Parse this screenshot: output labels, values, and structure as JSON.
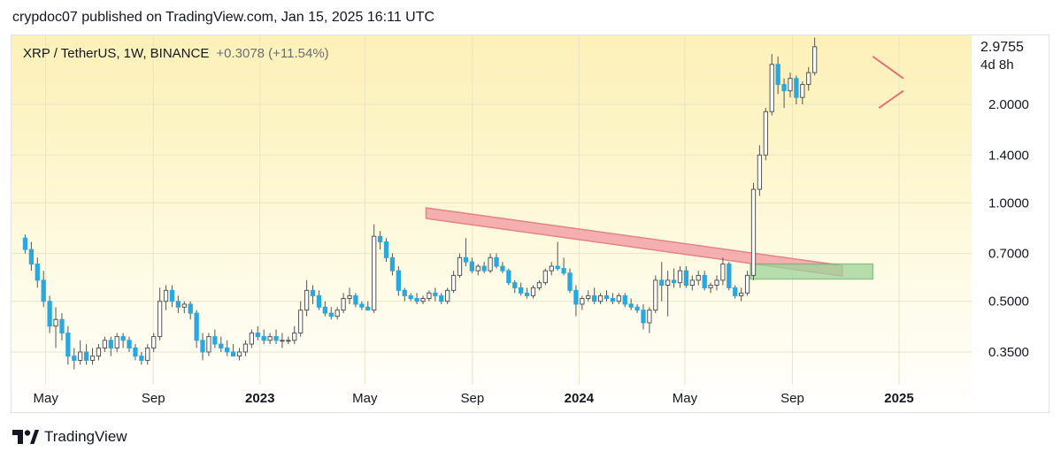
{
  "header": {
    "published": "crypdoc07 published on TradingView.com, Jan 15, 2025 16:11 UTC"
  },
  "symbol": {
    "name": "XRP / TetherUS, 1W, BINANCE",
    "change": "+0.3078 (+11.54%)"
  },
  "price_box": {
    "last": "2.9755",
    "countdown": "4d 8h"
  },
  "footer": {
    "brand": "TradingView",
    "logo_icon": "tradingview-logo-icon"
  },
  "colors": {
    "up": "#ffffff",
    "down": "#29a8e0",
    "wick": "#555555",
    "trendline_fill": "#f5a3a8",
    "trendline_stroke": "#e0707a",
    "range_box_fill": "#9fd39a",
    "range_box_stroke": "#6fb46a",
    "grid": "#e9e4c8",
    "text": "#131722"
  },
  "chart_data": {
    "type": "candlestick",
    "title": "XRP / TetherUS, 1W, BINANCE",
    "scale": "log",
    "ylim": [
      0.3,
      3.3
    ],
    "y_ticks": [
      {
        "value": 0.35,
        "label": "0.3500"
      },
      {
        "value": 0.5,
        "label": "0.5000"
      },
      {
        "value": 0.7,
        "label": "0.7000"
      },
      {
        "value": 1.0,
        "label": "1.0000"
      },
      {
        "value": 1.4,
        "label": "1.4000"
      },
      {
        "value": 2.0,
        "label": "2.0000"
      }
    ],
    "x_ticks": [
      {
        "date": "2022-05-01",
        "label": "May",
        "bold": false
      },
      {
        "date": "2022-09-01",
        "label": "Sep",
        "bold": false
      },
      {
        "date": "2023-01-01",
        "label": "2023",
        "bold": true
      },
      {
        "date": "2023-05-01",
        "label": "May",
        "bold": false
      },
      {
        "date": "2023-09-01",
        "label": "Sep",
        "bold": false
      },
      {
        "date": "2024-01-01",
        "label": "2024",
        "bold": true
      },
      {
        "date": "2024-05-01",
        "label": "May",
        "bold": false
      },
      {
        "date": "2024-09-01",
        "label": "Sep",
        "bold": false
      },
      {
        "date": "2025-01-01",
        "label": "2025",
        "bold": true
      }
    ],
    "x_range": [
      "2022-04-04",
      "2025-03-25"
    ],
    "candles_start": "2022-04-04",
    "candle_interval_days": 7,
    "ohlc": [
      [
        0.78,
        0.8,
        0.7,
        0.72
      ],
      [
        0.72,
        0.76,
        0.62,
        0.65
      ],
      [
        0.65,
        0.68,
        0.55,
        0.58
      ],
      [
        0.58,
        0.62,
        0.48,
        0.5
      ],
      [
        0.5,
        0.52,
        0.4,
        0.42
      ],
      [
        0.42,
        0.48,
        0.36,
        0.44
      ],
      [
        0.44,
        0.46,
        0.38,
        0.4
      ],
      [
        0.4,
        0.42,
        0.32,
        0.34
      ],
      [
        0.34,
        0.36,
        0.31,
        0.33
      ],
      [
        0.33,
        0.38,
        0.32,
        0.35
      ],
      [
        0.35,
        0.37,
        0.32,
        0.33
      ],
      [
        0.33,
        0.36,
        0.32,
        0.34
      ],
      [
        0.34,
        0.37,
        0.33,
        0.36
      ],
      [
        0.36,
        0.39,
        0.35,
        0.38
      ],
      [
        0.38,
        0.39,
        0.34,
        0.36
      ],
      [
        0.36,
        0.4,
        0.35,
        0.39
      ],
      [
        0.39,
        0.4,
        0.36,
        0.38
      ],
      [
        0.38,
        0.39,
        0.35,
        0.36
      ],
      [
        0.36,
        0.37,
        0.33,
        0.34
      ],
      [
        0.34,
        0.35,
        0.32,
        0.33
      ],
      [
        0.33,
        0.37,
        0.32,
        0.36
      ],
      [
        0.36,
        0.4,
        0.35,
        0.39
      ],
      [
        0.39,
        0.55,
        0.38,
        0.5
      ],
      [
        0.5,
        0.56,
        0.47,
        0.54
      ],
      [
        0.54,
        0.56,
        0.48,
        0.5
      ],
      [
        0.5,
        0.52,
        0.46,
        0.48
      ],
      [
        0.48,
        0.5,
        0.46,
        0.49
      ],
      [
        0.49,
        0.5,
        0.44,
        0.46
      ],
      [
        0.46,
        0.47,
        0.36,
        0.38
      ],
      [
        0.38,
        0.4,
        0.33,
        0.35
      ],
      [
        0.35,
        0.4,
        0.34,
        0.39
      ],
      [
        0.39,
        0.41,
        0.36,
        0.37
      ],
      [
        0.37,
        0.39,
        0.35,
        0.36
      ],
      [
        0.36,
        0.38,
        0.34,
        0.35
      ],
      [
        0.35,
        0.37,
        0.34,
        0.34
      ],
      [
        0.34,
        0.36,
        0.33,
        0.35
      ],
      [
        0.35,
        0.38,
        0.34,
        0.37
      ],
      [
        0.37,
        0.41,
        0.36,
        0.4
      ],
      [
        0.4,
        0.42,
        0.38,
        0.39
      ],
      [
        0.39,
        0.41,
        0.37,
        0.38
      ],
      [
        0.38,
        0.4,
        0.37,
        0.39
      ],
      [
        0.39,
        0.41,
        0.37,
        0.38
      ],
      [
        0.38,
        0.4,
        0.36,
        0.38
      ],
      [
        0.38,
        0.39,
        0.37,
        0.38
      ],
      [
        0.38,
        0.42,
        0.37,
        0.4
      ],
      [
        0.4,
        0.5,
        0.39,
        0.47
      ],
      [
        0.47,
        0.58,
        0.45,
        0.54
      ],
      [
        0.54,
        0.56,
        0.49,
        0.52
      ],
      [
        0.52,
        0.54,
        0.47,
        0.48
      ],
      [
        0.48,
        0.5,
        0.45,
        0.46
      ],
      [
        0.46,
        0.48,
        0.44,
        0.45
      ],
      [
        0.45,
        0.48,
        0.44,
        0.47
      ],
      [
        0.47,
        0.53,
        0.46,
        0.51
      ],
      [
        0.51,
        0.55,
        0.49,
        0.52
      ],
      [
        0.52,
        0.53,
        0.48,
        0.49
      ],
      [
        0.49,
        0.5,
        0.47,
        0.48
      ],
      [
        0.48,
        0.5,
        0.47,
        0.47
      ],
      [
        0.47,
        0.86,
        0.46,
        0.79
      ],
      [
        0.79,
        0.82,
        0.72,
        0.76
      ],
      [
        0.76,
        0.78,
        0.66,
        0.68
      ],
      [
        0.68,
        0.7,
        0.6,
        0.62
      ],
      [
        0.62,
        0.64,
        0.52,
        0.54
      ],
      [
        0.54,
        0.55,
        0.5,
        0.52
      ],
      [
        0.52,
        0.53,
        0.5,
        0.51
      ],
      [
        0.51,
        0.53,
        0.49,
        0.5
      ],
      [
        0.5,
        0.52,
        0.49,
        0.51
      ],
      [
        0.51,
        0.54,
        0.5,
        0.53
      ],
      [
        0.53,
        0.55,
        0.5,
        0.52
      ],
      [
        0.52,
        0.53,
        0.49,
        0.5
      ],
      [
        0.5,
        0.55,
        0.49,
        0.54
      ],
      [
        0.54,
        0.62,
        0.53,
        0.6
      ],
      [
        0.6,
        0.7,
        0.59,
        0.68
      ],
      [
        0.68,
        0.78,
        0.64,
        0.66
      ],
      [
        0.66,
        0.68,
        0.61,
        0.62
      ],
      [
        0.62,
        0.65,
        0.6,
        0.64
      ],
      [
        0.64,
        0.66,
        0.61,
        0.62
      ],
      [
        0.62,
        0.7,
        0.61,
        0.68
      ],
      [
        0.68,
        0.7,
        0.63,
        0.64
      ],
      [
        0.64,
        0.66,
        0.61,
        0.62
      ],
      [
        0.62,
        0.63,
        0.56,
        0.57
      ],
      [
        0.57,
        0.58,
        0.53,
        0.55
      ],
      [
        0.55,
        0.57,
        0.52,
        0.53
      ],
      [
        0.53,
        0.55,
        0.51,
        0.52
      ],
      [
        0.52,
        0.56,
        0.51,
        0.55
      ],
      [
        0.55,
        0.58,
        0.54,
        0.57
      ],
      [
        0.57,
        0.63,
        0.56,
        0.62
      ],
      [
        0.62,
        0.66,
        0.6,
        0.64
      ],
      [
        0.64,
        0.76,
        0.62,
        0.63
      ],
      [
        0.63,
        0.68,
        0.6,
        0.61
      ],
      [
        0.61,
        0.63,
        0.53,
        0.54
      ],
      [
        0.54,
        0.56,
        0.45,
        0.49
      ],
      [
        0.49,
        0.52,
        0.47,
        0.51
      ],
      [
        0.51,
        0.54,
        0.5,
        0.52
      ],
      [
        0.52,
        0.55,
        0.49,
        0.5
      ],
      [
        0.5,
        0.53,
        0.49,
        0.52
      ],
      [
        0.52,
        0.54,
        0.5,
        0.51
      ],
      [
        0.51,
        0.53,
        0.49,
        0.5
      ],
      [
        0.5,
        0.53,
        0.49,
        0.52
      ],
      [
        0.52,
        0.53,
        0.48,
        0.49
      ],
      [
        0.49,
        0.51,
        0.47,
        0.48
      ],
      [
        0.48,
        0.49,
        0.46,
        0.47
      ],
      [
        0.47,
        0.49,
        0.41,
        0.43
      ],
      [
        0.43,
        0.48,
        0.4,
        0.47
      ],
      [
        0.47,
        0.6,
        0.46,
        0.58
      ],
      [
        0.58,
        0.66,
        0.5,
        0.56
      ],
      [
        0.56,
        0.62,
        0.45,
        0.58
      ],
      [
        0.58,
        0.63,
        0.55,
        0.57
      ],
      [
        0.57,
        0.64,
        0.55,
        0.62
      ],
      [
        0.62,
        0.64,
        0.55,
        0.56
      ],
      [
        0.56,
        0.6,
        0.54,
        0.58
      ],
      [
        0.58,
        0.62,
        0.56,
        0.6
      ],
      [
        0.6,
        0.62,
        0.54,
        0.55
      ],
      [
        0.55,
        0.57,
        0.53,
        0.56
      ],
      [
        0.56,
        0.6,
        0.54,
        0.58
      ],
      [
        0.58,
        0.68,
        0.56,
        0.65
      ],
      [
        0.65,
        0.66,
        0.54,
        0.55
      ],
      [
        0.55,
        0.56,
        0.51,
        0.52
      ],
      [
        0.52,
        0.55,
        0.5,
        0.53
      ],
      [
        0.53,
        0.62,
        0.52,
        0.6
      ],
      [
        0.6,
        1.15,
        0.58,
        1.1
      ],
      [
        1.1,
        1.5,
        1.05,
        1.4
      ],
      [
        1.4,
        1.95,
        1.35,
        1.9
      ],
      [
        1.9,
        2.85,
        1.85,
        2.65
      ],
      [
        2.65,
        2.8,
        2.15,
        2.3
      ],
      [
        2.3,
        2.4,
        1.95,
        2.2
      ],
      [
        2.2,
        2.5,
        2.1,
        2.4
      ],
      [
        2.4,
        2.45,
        2.0,
        2.1
      ],
      [
        2.1,
        2.35,
        2.0,
        2.3
      ],
      [
        2.3,
        2.6,
        2.2,
        2.5
      ],
      [
        2.5,
        3.2,
        2.45,
        3.0
      ]
    ],
    "annotations": [
      {
        "type": "descending-trendline",
        "from": {
          "date": "2023-07-10",
          "price": 0.93
        },
        "to": {
          "date": "2024-10-28",
          "price": 0.62
        }
      },
      {
        "type": "consolidation-box",
        "from": {
          "date": "2024-07-15",
          "price": 0.585
        },
        "to": {
          "date": "2024-12-02",
          "price": 0.65
        }
      },
      {
        "type": "pennant-upper",
        "from": {
          "date": "2024-12-02",
          "price": 2.8
        },
        "to": {
          "date": "2025-01-06",
          "price": 2.4
        }
      },
      {
        "type": "pennant-lower",
        "from": {
          "date": "2024-12-09",
          "price": 1.95
        },
        "to": {
          "date": "2025-01-06",
          "price": 2.2
        }
      }
    ]
  }
}
